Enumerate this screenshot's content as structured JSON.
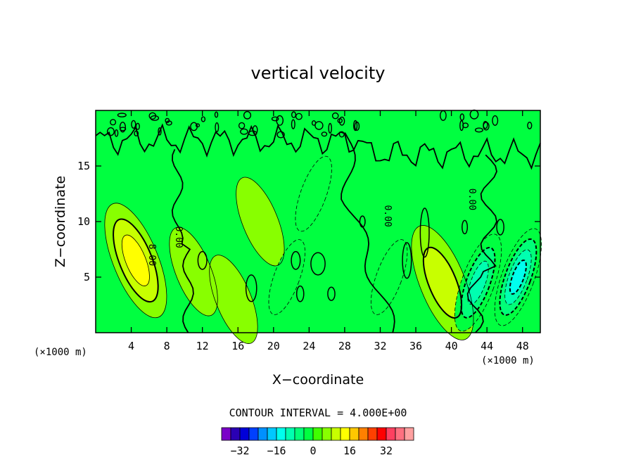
{
  "chart_data": {
    "type": "heatmap",
    "title": "vertical velocity",
    "xlabel": "X−coordinate",
    "ylabel": "Z−coordinate",
    "x_unit_label": "(×1000 m)",
    "y_unit_label": "(×1000 m)",
    "xlim": [
      0,
      50
    ],
    "ylim": [
      0,
      20
    ],
    "x_ticks": [
      "4",
      "8",
      "12",
      "16",
      "20",
      "24",
      "28",
      "32",
      "36",
      "40",
      "44",
      "48"
    ],
    "y_ticks": [
      "5",
      "10",
      "15"
    ],
    "contour_interval_text": "CONTOUR INTERVAL = 4.000E+00",
    "contour_labels": [
      {
        "text": "8.00",
        "x": 6.0,
        "z": 7.0
      },
      {
        "text": "0.00",
        "x": 9.0,
        "z": 8.6
      },
      {
        "text": "0.00",
        "x": 32.5,
        "z": 10.5
      },
      {
        "text": "0.00",
        "x": 42.0,
        "z": 12.0
      }
    ],
    "colorbar": {
      "colors": [
        "#7a00c8",
        "#2a00b4",
        "#0000d8",
        "#0040ff",
        "#0090ff",
        "#00c8ff",
        "#00ffee",
        "#00ffb0",
        "#00ff78",
        "#00ff40",
        "#40ff00",
        "#88ff00",
        "#c8ff00",
        "#ffff00",
        "#ffc800",
        "#ff8000",
        "#ff4000",
        "#ff0000",
        "#ff4060",
        "#ff7080",
        "#ffa0a0"
      ],
      "tick_labels": [
        "−32",
        "−16",
        "0",
        "16",
        "32"
      ],
      "tick_values": [
        -32,
        -16,
        0,
        16,
        32
      ],
      "range": [
        -40,
        44
      ]
    },
    "background_color": "#00ff40",
    "features": [
      {
        "kind": "updraft",
        "x": 4.5,
        "z": 6.5,
        "max": 12
      },
      {
        "kind": "updraft",
        "x": 39.0,
        "z": 4.5,
        "max": 8
      },
      {
        "kind": "updraft",
        "x": 15.5,
        "z": 3.0,
        "max": 4
      },
      {
        "kind": "updraft",
        "x": 11.0,
        "z": 5.5,
        "max": 4
      },
      {
        "kind": "updraft",
        "x": 18.5,
        "z": 10.0,
        "max": 4
      },
      {
        "kind": "downdraft",
        "x": 47.5,
        "z": 5.0,
        "min": -16
      },
      {
        "kind": "downdraft",
        "x": 43.0,
        "z": 4.5,
        "min": -12
      },
      {
        "kind": "downdraft",
        "x": 33.0,
        "z": 5.0,
        "min": -4
      },
      {
        "kind": "downdraft",
        "x": 21.5,
        "z": 5.0,
        "min": -4
      },
      {
        "kind": "downdraft",
        "x": 24.5,
        "z": 12.5,
        "min": -4
      }
    ]
  }
}
